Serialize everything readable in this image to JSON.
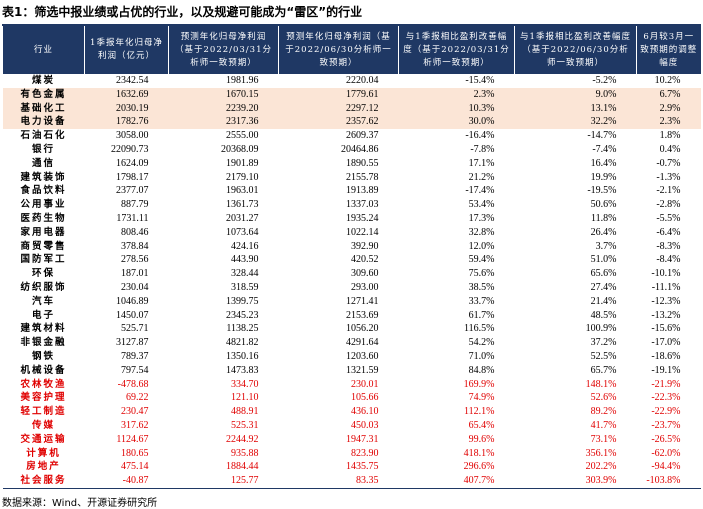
{
  "title": "表1：筛选中报业绩或占优的行业，以及规避可能成为“雷区”的行业",
  "table": {
    "header": [
      "行业",
      "1季报年化归母净利润（亿元）",
      "预测年化归母净利润（基于2022/03/31分析师一致预期）",
      "预测年化归母净利润（基于2022/06/30分析师一致预期）",
      "与1季报相比盈利改善幅度（基于2022/03/31分析师一致预期）",
      "与1季报相比盈利改善幅度（基于2022/06/30分析师一致预期）",
      "6月较3月一致预期的调整幅度"
    ],
    "header_fill": "#1f3864",
    "rows": [
      {
        "cells": [
          "煤炭",
          "2342.54",
          "1981.96",
          "2220.04",
          "-15.4%",
          "-5.2%",
          "10.2%"
        ]
      },
      {
        "cells": [
          "有色金属",
          "1632.69",
          "1670.15",
          "1779.61",
          "2.3%",
          "9.0%",
          "6.7%"
        ],
        "fill": "#fbe5d6"
      },
      {
        "cells": [
          "基础化工",
          "2030.19",
          "2239.20",
          "2297.12",
          "10.3%",
          "13.1%",
          "2.9%"
        ],
        "fill": "#fbe5d6"
      },
      {
        "cells": [
          "电力设备",
          "1782.76",
          "2317.36",
          "2357.62",
          "30.0%",
          "32.2%",
          "2.3%"
        ],
        "fill": "#fbe5d6"
      },
      {
        "cells": [
          "石油石化",
          "3058.00",
          "2555.00",
          "2609.37",
          "-16.4%",
          "-14.7%",
          "1.8%"
        ]
      },
      {
        "cells": [
          "银行",
          "22090.73",
          "20368.09",
          "20464.86",
          "-7.8%",
          "-7.4%",
          "0.4%"
        ]
      },
      {
        "cells": [
          "通信",
          "1624.09",
          "1901.89",
          "1890.55",
          "17.1%",
          "16.4%",
          "-0.7%"
        ]
      },
      {
        "cells": [
          "建筑装饰",
          "1798.17",
          "2179.10",
          "2155.78",
          "21.2%",
          "19.9%",
          "-1.3%"
        ]
      },
      {
        "cells": [
          "食品饮料",
          "2377.07",
          "1963.01",
          "1913.89",
          "-17.4%",
          "-19.5%",
          "-2.1%"
        ]
      },
      {
        "cells": [
          "公用事业",
          "887.79",
          "1361.73",
          "1337.03",
          "53.4%",
          "50.6%",
          "-2.8%"
        ]
      },
      {
        "cells": [
          "医药生物",
          "1731.11",
          "2031.27",
          "1935.24",
          "17.3%",
          "11.8%",
          "-5.5%"
        ]
      },
      {
        "cells": [
          "家用电器",
          "808.46",
          "1073.64",
          "1022.14",
          "32.8%",
          "26.4%",
          "-6.4%"
        ]
      },
      {
        "cells": [
          "商贸零售",
          "378.84",
          "424.16",
          "392.90",
          "12.0%",
          "3.7%",
          "-8.3%"
        ]
      },
      {
        "cells": [
          "国防军工",
          "278.56",
          "443.90",
          "420.52",
          "59.4%",
          "51.0%",
          "-8.4%"
        ]
      },
      {
        "cells": [
          "环保",
          "187.01",
          "328.44",
          "309.60",
          "75.6%",
          "65.6%",
          "-10.1%"
        ]
      },
      {
        "cells": [
          "纺织服饰",
          "230.04",
          "318.59",
          "293.00",
          "38.5%",
          "27.4%",
          "-11.1%"
        ]
      },
      {
        "cells": [
          "汽车",
          "1046.89",
          "1399.75",
          "1271.41",
          "33.7%",
          "21.4%",
          "-12.3%"
        ]
      },
      {
        "cells": [
          "电子",
          "1450.07",
          "2345.23",
          "2153.69",
          "61.7%",
          "48.5%",
          "-13.2%"
        ]
      },
      {
        "cells": [
          "建筑材料",
          "525.71",
          "1138.25",
          "1056.20",
          "116.5%",
          "100.9%",
          "-15.6%"
        ]
      },
      {
        "cells": [
          "非银金融",
          "3127.87",
          "4821.82",
          "4291.64",
          "54.2%",
          "37.2%",
          "-17.0%"
        ]
      },
      {
        "cells": [
          "钢铁",
          "789.37",
          "1350.16",
          "1203.60",
          "71.0%",
          "52.5%",
          "-18.6%"
        ]
      },
      {
        "cells": [
          "机械设备",
          "797.54",
          "1473.83",
          "1321.59",
          "84.8%",
          "65.7%",
          "-19.1%"
        ]
      },
      {
        "cells": [
          "农林牧渔",
          "-478.68",
          "334.70",
          "230.01",
          "169.9%",
          "148.1%",
          "-21.9%"
        ],
        "color": "#e00000"
      },
      {
        "cells": [
          "美容护理",
          "69.22",
          "121.10",
          "105.66",
          "74.9%",
          "52.6%",
          "-22.3%"
        ],
        "color": "#e00000"
      },
      {
        "cells": [
          "轻工制造",
          "230.47",
          "488.91",
          "436.10",
          "112.1%",
          "89.2%",
          "-22.9%"
        ],
        "color": "#e00000"
      },
      {
        "cells": [
          "传媒",
          "317.62",
          "525.31",
          "450.03",
          "65.4%",
          "41.7%",
          "-23.7%"
        ],
        "color": "#e00000"
      },
      {
        "cells": [
          "交通运输",
          "1124.67",
          "2244.92",
          "1947.31",
          "99.6%",
          "73.1%",
          "-26.5%"
        ],
        "color": "#e00000"
      },
      {
        "cells": [
          "计算机",
          "180.65",
          "935.88",
          "823.90",
          "418.1%",
          "356.1%",
          "-62.0%"
        ],
        "color": "#e00000"
      },
      {
        "cells": [
          "房地产",
          "475.14",
          "1884.44",
          "1435.75",
          "296.6%",
          "202.2%",
          "-94.4%"
        ],
        "color": "#e00000"
      },
      {
        "cells": [
          "社会服务",
          "-40.87",
          "125.77",
          "83.35",
          "407.7%",
          "303.9%",
          "-103.8%"
        ],
        "color": "#e00000"
      }
    ]
  },
  "source": "数据来源：Wind、开源证券研究所"
}
